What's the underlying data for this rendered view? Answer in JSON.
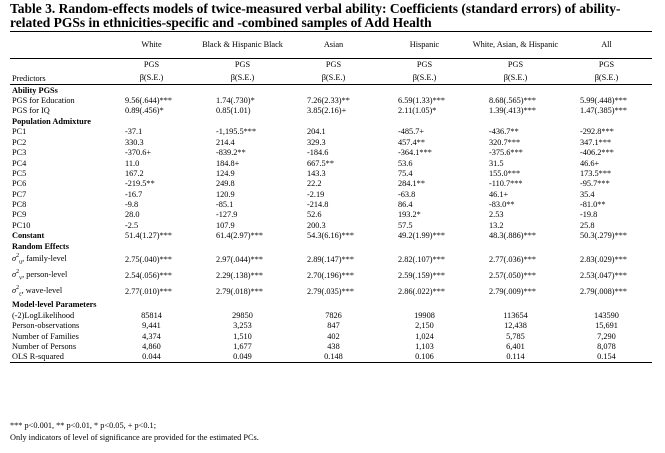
{
  "title_line1": "Table 3. Random-effects models of twice-measured verbal ability: Coefficients (standard errors) of ability-",
  "title_line2": "related PGSs in ethnicities-specific and -combined samples of Add Health",
  "columns": [
    "White",
    "Black & Hispanic Black",
    "Asian",
    "Hispanic",
    "White, Asian, & Hispanic",
    "All"
  ],
  "pgs_label": "PGS",
  "beta_label": "β(S.E.)",
  "predictors_label": "Predictors",
  "sections": {
    "ability": "Ability PGSs",
    "admixture": "Population Admixture",
    "random": "Random Effects",
    "model": "Model-level Parameters"
  },
  "ability_rows": [
    {
      "label": "PGS for Education",
      "values": [
        "9.56(.644)***",
        "1.74(.730)*",
        "7.26(2.33)**",
        "6.59(1.33)***",
        "8.68(.565)***",
        "5.99(.448)***"
      ]
    },
    {
      "label": "PGS for IQ",
      "values": [
        "0.89(.456)*",
        "0.85(1.01)",
        "3.85(2.16)+",
        "2.11(1.05)*",
        "1.39(.413)***",
        "1.47(.385)***"
      ]
    }
  ],
  "pc_rows": [
    {
      "label": "PC1",
      "values": [
        "-37.1",
        "-1,195.5***",
        "204.1",
        "-485.7+",
        "-436.7**",
        "-292.8***"
      ]
    },
    {
      "label": "PC2",
      "values": [
        "330.3",
        "214.4",
        "329.3",
        "457.4**",
        "320.7***",
        "347.1***"
      ]
    },
    {
      "label": "PC3",
      "values": [
        "-370.6+",
        "-839.2**",
        "-184.6",
        "-364.1***",
        "-375.6***",
        "-406.2***"
      ]
    },
    {
      "label": "PC4",
      "values": [
        "11.0",
        "184.8+",
        "667.5**",
        "53.6",
        "31.5",
        "46.6+"
      ]
    },
    {
      "label": "PC5",
      "values": [
        "167.2",
        "124.9",
        "143.3",
        "75.4",
        "155.0***",
        "173.5***"
      ]
    },
    {
      "label": "PC6",
      "values": [
        "-219.5**",
        "249.8",
        "22.2",
        "284.1**",
        "-110.7***",
        "-95.7***"
      ]
    },
    {
      "label": "PC7",
      "values": [
        "-16.7",
        "120.9",
        "-2.19",
        "-63.8",
        "46.1+",
        "35.4"
      ]
    },
    {
      "label": "PC8",
      "values": [
        "-9.8",
        "-85.1",
        "-214.8",
        "86.4",
        "-83.0**",
        "-81.0**"
      ]
    },
    {
      "label": "PC9",
      "values": [
        "28.0",
        "-127.9",
        "52.6",
        "193.2*",
        "2.53",
        "-19.8"
      ]
    },
    {
      "label": "PC10",
      "values": [
        "-2.5",
        "107.9",
        "200.3",
        "57.5",
        "13.2",
        "25.8"
      ]
    }
  ],
  "constant_row": {
    "label": "Constant",
    "values": [
      "51.4(1.27)***",
      "61.4(2.97)***",
      "54.3(6.16)***",
      "49.2(1.99)***",
      "48.3(.886)***",
      "50.3(.279)***"
    ]
  },
  "random_rows": [
    {
      "sigma": "σ",
      "sub": "u",
      "label": ", family-level",
      "values": [
        "2.75(.040)***",
        "2.97(.044)***",
        "2.89(.147)***",
        "2.82(.107)***",
        "2.77(.036)***",
        "2.83(.029)***"
      ]
    },
    {
      "sigma": "σ",
      "sub": "v",
      "label": ", person-level",
      "values": [
        "2.54(.056)***",
        "2.29(.138)***",
        "2.70(.196)***",
        "2.59(.159)***",
        "2.57(.050)***",
        "2.53(.047)***"
      ]
    },
    {
      "sigma": "σ",
      "sub": "ε",
      "label": ", wave-level",
      "values": [
        "2.77(.010)***",
        "2.79(.018)***",
        "2.79(.035)***",
        "2.86(.022)***",
        "2.79(.009)***",
        "2.79(.008)***"
      ]
    }
  ],
  "model_rows": [
    {
      "label": "(-2)LogLikelihood",
      "values": [
        "85814",
        "29850",
        "7826",
        "19908",
        "113654",
        "143590"
      ]
    },
    {
      "label": "Person-observations",
      "values": [
        "9,441",
        "3,253",
        "847",
        "2,150",
        "12,438",
        "15,691"
      ]
    },
    {
      "label": "Number of Families",
      "values": [
        "4,374",
        "1,510",
        "402",
        "1,024",
        "5,785",
        "7,290"
      ]
    },
    {
      "label": "Number of Persons",
      "values": [
        "4,860",
        "1,677",
        "438",
        "1,103",
        "6,401",
        "8,078"
      ]
    },
    {
      "label": "OLS R-squared",
      "values": [
        "0.044",
        "0.049",
        "0.148",
        "0.106",
        "0.114",
        "0.154"
      ]
    }
  ],
  "notes": [
    "*** p<0.001, ** p<0.01, * p<0.05, + p<0.1;",
    "Only indicators of level of significance are provided for the estimated PCs."
  ]
}
